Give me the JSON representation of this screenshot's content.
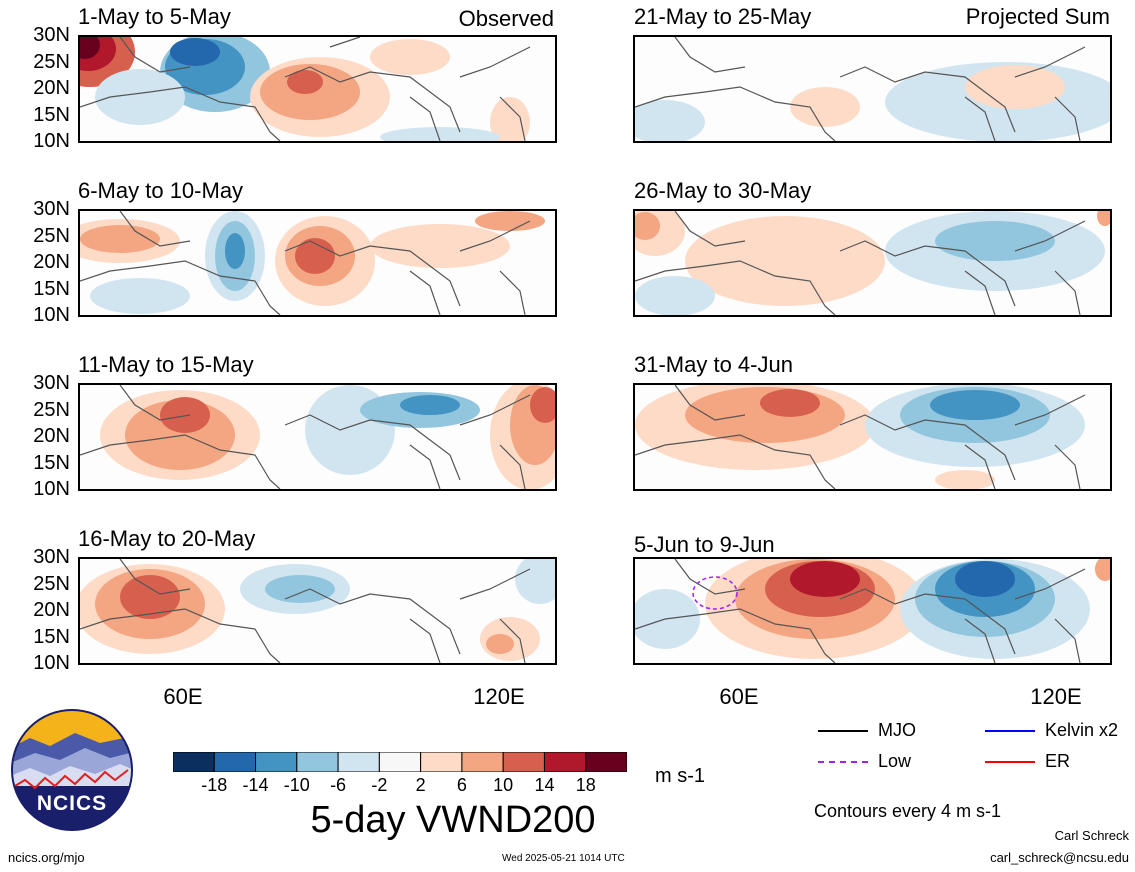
{
  "header": {
    "observed_label": "Observed",
    "projected_label": "Projected Sum"
  },
  "panels": [
    {
      "title": "1-May to 5-May"
    },
    {
      "title": "6-May to 10-May"
    },
    {
      "title": "11-May to 15-May"
    },
    {
      "title": "16-May to 20-May"
    },
    {
      "title": "21-May to 25-May"
    },
    {
      "title": "26-May to 30-May"
    },
    {
      "title": "31-May to 4-Jun"
    },
    {
      "title": "5-Jun to 9-Jun"
    }
  ],
  "axes": {
    "lat_labels": [
      "30N",
      "25N",
      "20N",
      "15N",
      "10N"
    ],
    "lon_labels": [
      "60E",
      "120E"
    ]
  },
  "colorbar": {
    "labels": [
      "-18",
      "-14",
      "-10",
      "-6",
      "-2",
      "2",
      "6",
      "10",
      "14",
      "18"
    ],
    "colors": [
      "#0b2f5e",
      "#2367ac",
      "#4393c3",
      "#92c5de",
      "#d1e5f0",
      "#f7f7f7",
      "#fddbc7",
      "#f4a582",
      "#d6604d",
      "#b2182b",
      "#67001f"
    ],
    "units": "m s-1",
    "title": "5-day VWND200"
  },
  "legend": {
    "items": [
      {
        "label": "MJO",
        "color": "#000000",
        "style": "solid"
      },
      {
        "label": "Kelvin x2",
        "color": "#0000ff",
        "style": "solid"
      },
      {
        "label": "Low",
        "color": "#a020f0",
        "style": "dashed"
      },
      {
        "label": "ER",
        "color": "#ff0000",
        "style": "solid"
      }
    ],
    "contours_note": "Contours every 4 m s-1"
  },
  "footer": {
    "logo_text": "NCICS",
    "site": "ncics.org/mjo",
    "timestamp": "Wed 2025-05-21 1014 UTC",
    "author": "Carl Schreck",
    "email": "carl_schreck@ncsu.edu"
  }
}
